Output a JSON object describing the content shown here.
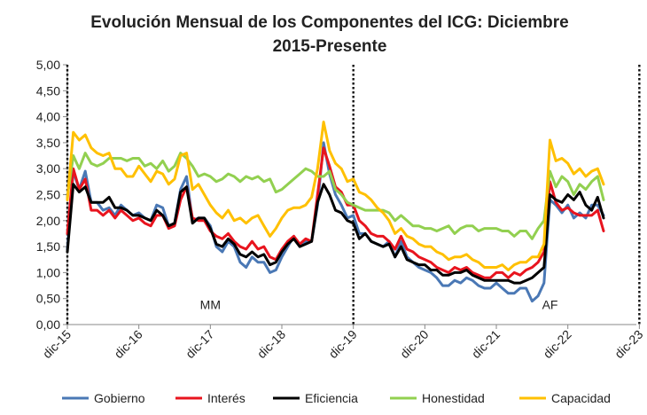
{
  "chart_data": {
    "type": "line",
    "title_lines": [
      "Evolución Mensual de los Componentes del ICG: Diciembre",
      "2015-Presente"
    ],
    "xlabel": "",
    "ylabel": "",
    "ylim": [
      0,
      5
    ],
    "y_ticks": [
      "0,00",
      "0,50",
      "1,00",
      "1,50",
      "2,00",
      "2,50",
      "3,00",
      "3,50",
      "4,00",
      "4,50",
      "5,00"
    ],
    "x_tick_labels": [
      "dic-15",
      "dic-16",
      "dic-17",
      "dic-18",
      "dic-19",
      "dic-20",
      "dic-21",
      "dic-22",
      "dic-23"
    ],
    "x_start": "2015-12",
    "period_markers": [
      "dic-15",
      "dic-19",
      "dic-23"
    ],
    "annotations": [
      {
        "text": "MM",
        "x": "2017-12",
        "y": 0.3
      },
      {
        "text": "AF",
        "x": "2022-09",
        "y": 0.3
      }
    ],
    "grid": false,
    "legend_position": "bottom",
    "series": [
      {
        "name": "Gobierno",
        "color": "#4a78b5",
        "values": [
          1.45,
          2.95,
          2.6,
          2.95,
          2.35,
          2.35,
          2.2,
          2.25,
          2.1,
          2.3,
          2.2,
          2.1,
          2.15,
          2.05,
          2.0,
          2.3,
          2.25,
          1.9,
          1.95,
          2.6,
          2.85,
          2.0,
          2.05,
          2.05,
          1.9,
          1.5,
          1.4,
          1.6,
          1.5,
          1.2,
          1.1,
          1.3,
          1.2,
          1.2,
          1.0,
          1.05,
          1.3,
          1.5,
          1.7,
          1.5,
          1.6,
          1.6,
          2.3,
          3.5,
          2.9,
          2.5,
          2.3,
          2.05,
          2.1,
          1.75,
          1.75,
          1.6,
          1.55,
          1.5,
          1.6,
          1.3,
          1.6,
          1.3,
          1.2,
          1.1,
          1.05,
          1.0,
          0.9,
          0.75,
          0.75,
          0.85,
          0.8,
          0.9,
          0.85,
          0.75,
          0.7,
          0.7,
          0.8,
          0.7,
          0.6,
          0.6,
          0.7,
          0.7,
          0.45,
          0.55,
          0.8,
          2.4,
          2.3,
          2.15,
          2.3,
          2.05,
          2.15,
          2.05,
          2.3,
          2.3,
          2.1
        ]
      },
      {
        "name": "Interés",
        "color": "#e8141e",
        "values": [
          1.75,
          3.0,
          2.6,
          2.8,
          2.2,
          2.2,
          2.1,
          2.2,
          2.05,
          2.2,
          2.1,
          2.0,
          2.05,
          1.95,
          1.9,
          2.1,
          2.1,
          1.85,
          1.9,
          2.4,
          2.65,
          2.05,
          2.0,
          2.0,
          1.8,
          1.7,
          1.65,
          1.75,
          1.6,
          1.5,
          1.45,
          1.6,
          1.45,
          1.5,
          1.3,
          1.25,
          1.45,
          1.6,
          1.7,
          1.55,
          1.65,
          1.6,
          2.5,
          3.4,
          3.05,
          2.65,
          2.55,
          2.3,
          2.3,
          2.0,
          1.9,
          1.75,
          1.7,
          1.7,
          1.6,
          1.45,
          1.7,
          1.45,
          1.4,
          1.3,
          1.25,
          1.2,
          1.1,
          1.05,
          1.0,
          1.1,
          1.05,
          1.1,
          1.0,
          0.95,
          0.9,
          0.9,
          1.0,
          1.0,
          0.9,
          1.0,
          0.95,
          1.05,
          1.1,
          1.2,
          1.4,
          2.75,
          2.35,
          2.2,
          2.25,
          2.15,
          2.1,
          2.1,
          2.1,
          2.2,
          1.8
        ]
      },
      {
        "name": "Eficiencia",
        "color": "#000000",
        "values": [
          1.4,
          2.7,
          2.55,
          2.65,
          2.35,
          2.35,
          2.35,
          2.45,
          2.25,
          2.25,
          2.2,
          2.1,
          2.1,
          2.05,
          2.0,
          2.2,
          2.1,
          1.9,
          1.95,
          2.55,
          2.65,
          1.95,
          2.05,
          2.05,
          1.85,
          1.55,
          1.5,
          1.65,
          1.55,
          1.35,
          1.3,
          1.4,
          1.3,
          1.35,
          1.15,
          1.2,
          1.4,
          1.55,
          1.65,
          1.5,
          1.55,
          1.6,
          2.35,
          2.7,
          2.5,
          2.2,
          2.15,
          2.0,
          1.95,
          1.65,
          1.75,
          1.6,
          1.55,
          1.5,
          1.55,
          1.3,
          1.5,
          1.25,
          1.2,
          1.15,
          1.15,
          1.05,
          1.05,
          0.95,
          0.95,
          1.0,
          1.0,
          1.05,
          0.95,
          0.9,
          0.85,
          0.85,
          0.85,
          0.85,
          0.85,
          0.8,
          0.8,
          0.85,
          0.9,
          1.0,
          1.1,
          2.5,
          2.4,
          2.35,
          2.5,
          2.4,
          2.55,
          2.3,
          2.2,
          2.45,
          2.05
        ]
      },
      {
        "name": "Honestidad",
        "color": "#92d050",
        "values": [
          2.45,
          3.25,
          3.0,
          3.3,
          3.1,
          3.05,
          3.1,
          3.2,
          3.2,
          3.2,
          3.15,
          3.2,
          3.2,
          3.05,
          3.1,
          3.0,
          3.15,
          2.95,
          3.05,
          3.3,
          3.2,
          3.05,
          2.85,
          2.9,
          2.85,
          2.75,
          2.8,
          2.9,
          2.85,
          2.75,
          2.85,
          2.8,
          2.85,
          2.75,
          2.8,
          2.55,
          2.6,
          2.7,
          2.8,
          2.9,
          3.0,
          2.95,
          2.85,
          2.85,
          2.95,
          2.6,
          2.5,
          2.35,
          2.3,
          2.25,
          2.2,
          2.2,
          2.2,
          2.2,
          2.15,
          2.0,
          2.1,
          2.0,
          1.9,
          1.9,
          1.85,
          1.85,
          1.8,
          1.85,
          1.9,
          1.75,
          1.85,
          1.9,
          1.9,
          1.8,
          1.85,
          1.85,
          1.85,
          1.8,
          1.8,
          1.7,
          1.8,
          1.8,
          1.65,
          1.85,
          2.0,
          2.95,
          2.65,
          2.85,
          2.75,
          2.5,
          2.7,
          2.6,
          2.75,
          2.85,
          2.4
        ]
      },
      {
        "name": "Capacidad",
        "color": "#ffc000",
        "values": [
          2.4,
          3.7,
          3.55,
          3.65,
          3.4,
          3.3,
          3.25,
          3.3,
          3.0,
          3.0,
          2.85,
          2.85,
          3.05,
          2.9,
          2.75,
          2.95,
          2.9,
          2.7,
          2.8,
          3.25,
          3.3,
          2.6,
          2.7,
          2.5,
          2.3,
          2.15,
          2.05,
          2.2,
          2.0,
          2.05,
          1.95,
          2.05,
          2.1,
          1.9,
          1.7,
          1.85,
          2.05,
          2.2,
          2.25,
          2.25,
          2.3,
          2.45,
          3.0,
          3.9,
          3.35,
          3.1,
          3.0,
          2.75,
          2.8,
          2.55,
          2.5,
          2.4,
          2.25,
          2.15,
          2.0,
          1.75,
          1.85,
          1.7,
          1.65,
          1.55,
          1.5,
          1.5,
          1.4,
          1.35,
          1.25,
          1.3,
          1.3,
          1.35,
          1.25,
          1.2,
          1.1,
          1.1,
          1.1,
          1.15,
          1.05,
          1.15,
          1.2,
          1.2,
          1.3,
          1.3,
          1.55,
          3.55,
          3.15,
          3.2,
          3.1,
          2.9,
          3.0,
          2.85,
          2.95,
          3.0,
          2.7
        ]
      }
    ]
  }
}
